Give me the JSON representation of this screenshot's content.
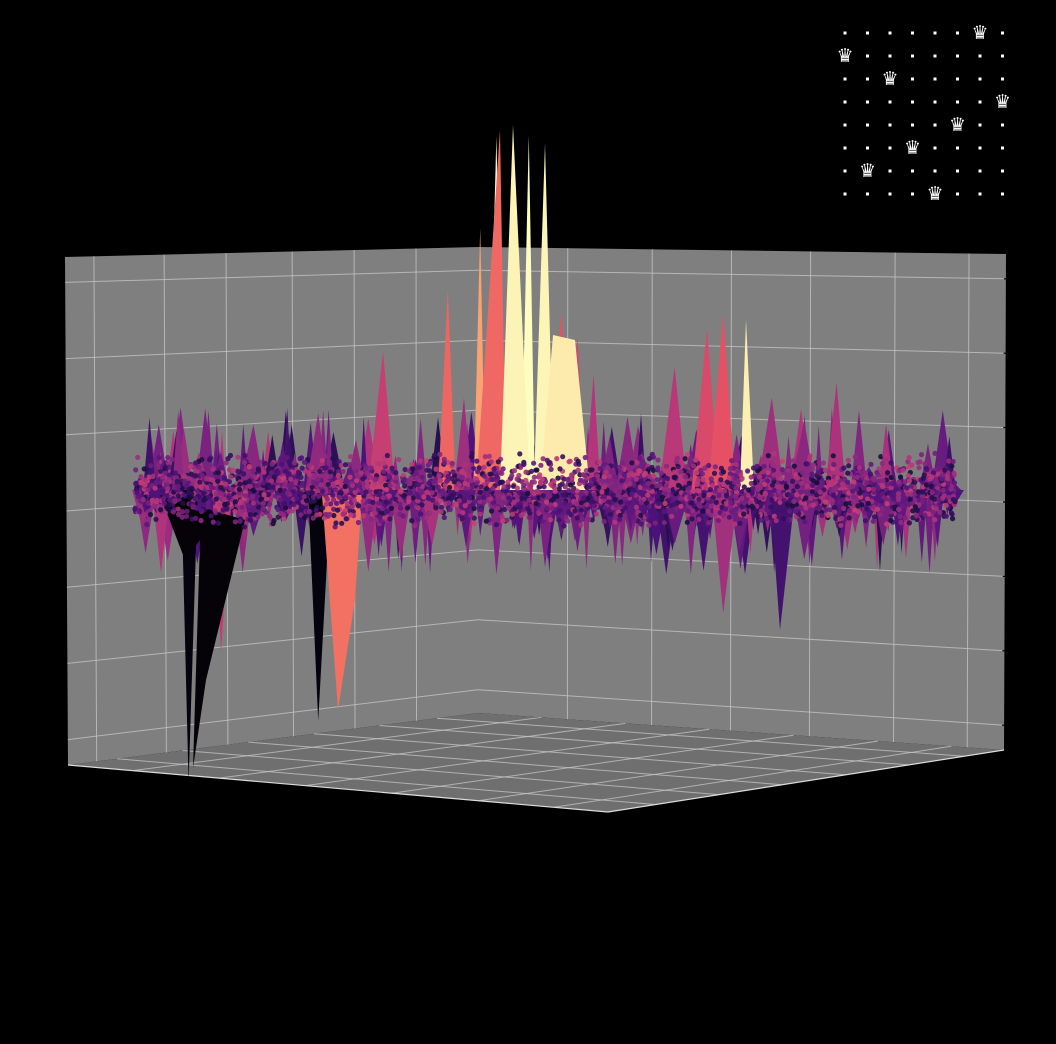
{
  "chart_data": [
    {
      "type": "surface3d",
      "title": "",
      "xlabel": "",
      "ylabel": "",
      "zlabel": "",
      "colormap": "magma",
      "pane_color": "#7f7f7f",
      "grid": true,
      "background": "#000000",
      "tick_labels": "none",
      "surface_profile": {
        "description_free": true,
        "x": [
          0.0,
          0.02,
          0.06,
          0.1,
          0.14,
          0.18,
          0.22,
          0.26,
          0.3,
          0.34,
          0.38,
          0.4,
          0.42,
          0.44,
          0.46,
          0.48,
          0.5,
          0.52,
          0.54,
          0.56,
          0.58,
          0.62,
          0.66,
          0.68,
          0.7,
          0.72,
          0.74,
          0.78,
          0.82,
          0.86,
          0.9,
          0.94,
          1.0
        ],
        "z_peak": [
          0.2,
          0.1,
          0.15,
          0.5,
          0.85,
          0.4,
          1.0,
          0.35,
          1.8,
          0.4,
          2.6,
          1.2,
          3.4,
          4.6,
          1.2,
          4.6,
          4.5,
          2.3,
          2.0,
          1.5,
          0.7,
          0.5,
          1.6,
          0.6,
          2.1,
          2.3,
          0.4,
          1.2,
          0.9,
          1.4,
          0.3,
          0.2,
          0.15
        ],
        "z_trough": [
          -0.1,
          -0.3,
          -3.8,
          -2.1,
          -0.6,
          -0.4,
          -3.0,
          -0.6,
          -0.4,
          -0.8,
          -0.3,
          -0.5,
          -0.6,
          -1.1,
          -0.5,
          -0.4,
          -1.0,
          -0.6,
          -0.8,
          -0.4,
          -0.5,
          -0.4,
          -0.7,
          -1.1,
          -0.5,
          -1.6,
          -0.8,
          -0.5,
          -0.9,
          -0.5,
          -0.4,
          -0.6,
          -0.3
        ]
      },
      "scatter": {
        "points": 2600,
        "colormap": "magma",
        "z_range": [
          -0.3,
          0.3
        ]
      }
    },
    {
      "type": "grid-board",
      "rows": 8,
      "cols": 8,
      "marker": "♛",
      "queen_columns": [
        6,
        0,
        2,
        7,
        5,
        3,
        1,
        4
      ]
    }
  ]
}
